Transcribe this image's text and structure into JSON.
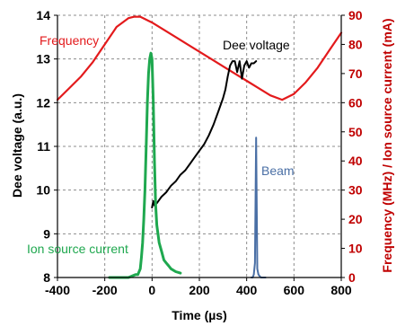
{
  "chart_data": {
    "type": "line",
    "title": "",
    "xlabel": "Time (µs)",
    "ylabel_left": "Dee voltage (a.u.)",
    "ylabel_right": "Frequency (MHz) / Ion source current (mA)",
    "xlim": [
      -400,
      800
    ],
    "xticks": [
      -400,
      -200,
      0,
      200,
      400,
      600,
      800
    ],
    "ylim_left": [
      8,
      14
    ],
    "yticks_left": [
      8,
      9,
      10,
      11,
      12,
      13,
      14
    ],
    "ylim_right": [
      0,
      90
    ],
    "yticks_right": [
      0,
      10,
      20,
      30,
      40,
      50,
      60,
      70,
      80,
      90
    ],
    "grid": true,
    "legend": "none",
    "colors": {
      "frequency": "#e31a1c",
      "dee_voltage": "#000000",
      "ion_source_current": "#1fa84f",
      "beam": "#4a6fa5",
      "right_axis": "#c00000"
    },
    "series": [
      {
        "name": "Frequency",
        "axis": "right",
        "x": [
          -400,
          -350,
          -300,
          -250,
          -200,
          -150,
          -100,
          -75,
          -50,
          0,
          50,
          100,
          150,
          200,
          250,
          300,
          350,
          400,
          450,
          500,
          550,
          600,
          650,
          700,
          750,
          800
        ],
        "y": [
          61,
          65,
          69,
          74,
          80,
          86,
          89,
          89.5,
          89.5,
          87.5,
          85,
          82.5,
          80,
          77.5,
          75,
          72.5,
          70,
          67.5,
          65,
          62.5,
          61,
          63,
          67,
          72,
          78,
          84
        ]
      },
      {
        "name": "Dee voltage",
        "axis": "left",
        "x": [
          0,
          5,
          10,
          20,
          40,
          60,
          80,
          100,
          120,
          140,
          160,
          180,
          200,
          220,
          240,
          260,
          280,
          300,
          310,
          320,
          330,
          340,
          350,
          360,
          370,
          380,
          390,
          400,
          410,
          420,
          430,
          440
        ],
        "y": [
          9.6,
          9.75,
          9.65,
          9.7,
          9.85,
          9.95,
          10.1,
          10.2,
          10.35,
          10.45,
          10.6,
          10.75,
          10.9,
          11.05,
          11.25,
          11.5,
          11.8,
          12.1,
          12.3,
          12.6,
          12.85,
          12.95,
          12.95,
          12.7,
          12.95,
          12.55,
          12.85,
          12.95,
          12.8,
          12.9,
          12.9,
          12.95
        ]
      },
      {
        "name": "Ion source current",
        "axis": "right",
        "x": [
          -180,
          -150,
          -100,
          -70,
          -60,
          -50,
          -45,
          -40,
          -35,
          -30,
          -25,
          -20,
          -15,
          -10,
          -5,
          0,
          5,
          10,
          15,
          20,
          30,
          40,
          50,
          60,
          70,
          80,
          100,
          120
        ],
        "y": [
          0,
          0,
          0,
          1,
          1,
          3,
          7,
          12,
          20,
          30,
          45,
          60,
          70,
          75,
          77,
          75,
          60,
          40,
          25,
          18,
          12,
          9,
          6,
          5,
          4,
          3,
          2,
          1.5
        ]
      },
      {
        "name": "Beam",
        "axis": "right",
        "x": [
          420,
          425,
          430,
          435,
          440,
          445,
          450,
          455,
          460,
          470,
          480
        ],
        "y": [
          0,
          0,
          1,
          5,
          48,
          3,
          1,
          0.5,
          0,
          0,
          0
        ]
      }
    ],
    "annotations": [
      {
        "text": "Frequency",
        "color": "#e31a1c"
      },
      {
        "text": "Dee voltage",
        "color": "#000000"
      },
      {
        "text": "Ion source current",
        "color": "#1fa84f"
      },
      {
        "text": "Beam",
        "color": "#4a6fa5"
      }
    ]
  }
}
